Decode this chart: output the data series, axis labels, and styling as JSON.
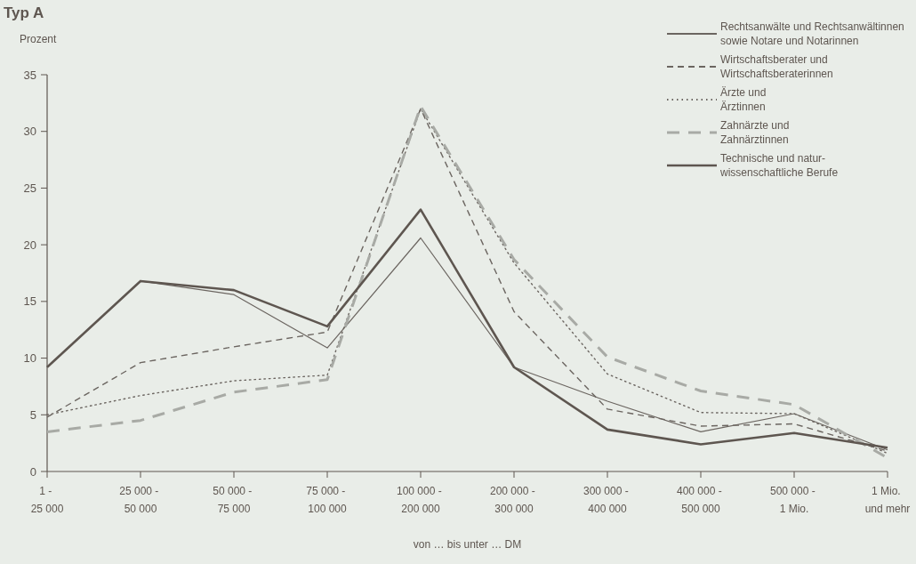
{
  "chart_data": {
    "type": "line",
    "title": "Typ A",
    "ylabel": "Prozent",
    "xlabel": "von … bis unter … DM",
    "categories": [
      "1 -\n25 000",
      "25 000 -\n50 000",
      "50 000 -\n75 000",
      "75 000 -\n100 000",
      "100 000 -\n200 000",
      "200 000 -\n300 000",
      "300 000 -\n400 000",
      "400 000 -\n500 000",
      "500 000 -\n1 Mio.",
      "1 Mio.\nund mehr"
    ],
    "series": [
      {
        "name": "Rechtsanwälte und Rechtsanwältinnen\nsowie Notare und Notarinnen",
        "color": "#6b6560",
        "line_style": "solid",
        "values": [
          9.2,
          16.8,
          15.6,
          10.9,
          20.6,
          9.2,
          6.2,
          3.5,
          5.1,
          1.9
        ]
      },
      {
        "name": "Wirtschaftsberater und\nWirtschaftsberaterinnen",
        "color": "#6b6560",
        "line_style": "dashed",
        "values": [
          4.8,
          9.6,
          11.0,
          12.3,
          32.0,
          14.1,
          5.5,
          4.0,
          4.2,
          1.8
        ]
      },
      {
        "name": "Ärzte und\nÄrztinnen",
        "color": "#6b6560",
        "line_style": "dotted",
        "values": [
          5.0,
          6.7,
          8.0,
          8.5,
          32.0,
          18.4,
          8.6,
          5.2,
          5.1,
          1.6
        ]
      },
      {
        "name": "Zahnärzte und\nZahnärztinnen",
        "color": "#a8aaa5",
        "line_style": "dashed",
        "values": [
          3.5,
          4.5,
          7.0,
          8.1,
          32.2,
          18.7,
          10.1,
          7.1,
          5.9,
          1.2
        ]
      },
      {
        "name": "Technische und natur-\nwissenschaftliche Berufe",
        "color": "#5e5650",
        "line_style": "solid",
        "values": [
          9.2,
          16.8,
          16.0,
          12.8,
          23.1,
          9.2,
          3.7,
          2.4,
          3.4,
          2.1
        ]
      }
    ],
    "ylim": [
      0,
      35
    ],
    "yticks": [
      0,
      5,
      10,
      15,
      20,
      25,
      30,
      35
    ],
    "grid": false,
    "legend": "top right",
    "marker": "none"
  }
}
